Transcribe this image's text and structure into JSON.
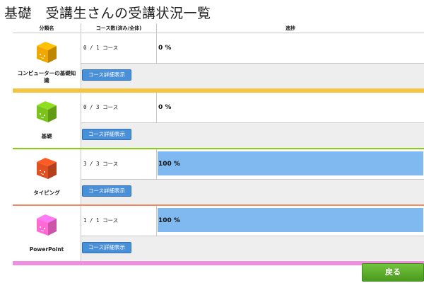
{
  "page": {
    "title": "基礎　受講生さんの受講状況一覧"
  },
  "table": {
    "headers": {
      "category": "分類名",
      "count": "コース数(済み/全体)",
      "progress": "進捗"
    },
    "rows": [
      {
        "name": "コンピューターの基礎知識",
        "count": "0 / 1 コース",
        "progress_text": "0 %",
        "progress": 0,
        "cube_color": "#f0a800",
        "stripe_color": "#f5c542",
        "button": "コース詳細表示"
      },
      {
        "name": "基礎",
        "count": "0 / 3 コース",
        "progress_text": "0 %",
        "progress": 0,
        "cube_color": "#7cc21c",
        "stripe_color": "#8acb16",
        "button": "コース詳細表示"
      },
      {
        "name": "タイピング",
        "count": "3 / 3 コース",
        "progress_text": "100 %",
        "progress": 100,
        "cube_color": "#e05020",
        "stripe_color": "#ef8a5f",
        "button": "コース詳細表示"
      },
      {
        "name": "PowerPoint",
        "count": "1 / 1 コース",
        "progress_text": "100 %",
        "progress": 100,
        "cube_color": "#ff6ad5",
        "stripe_color": "#f08ee0",
        "button": "コース詳細表示"
      }
    ]
  },
  "footer": {
    "back_label": "戻る"
  },
  "colors": {
    "button_blue": "#4a90d9",
    "progress_fill": "#7fb9f0",
    "back_green": "#5cb22a"
  }
}
